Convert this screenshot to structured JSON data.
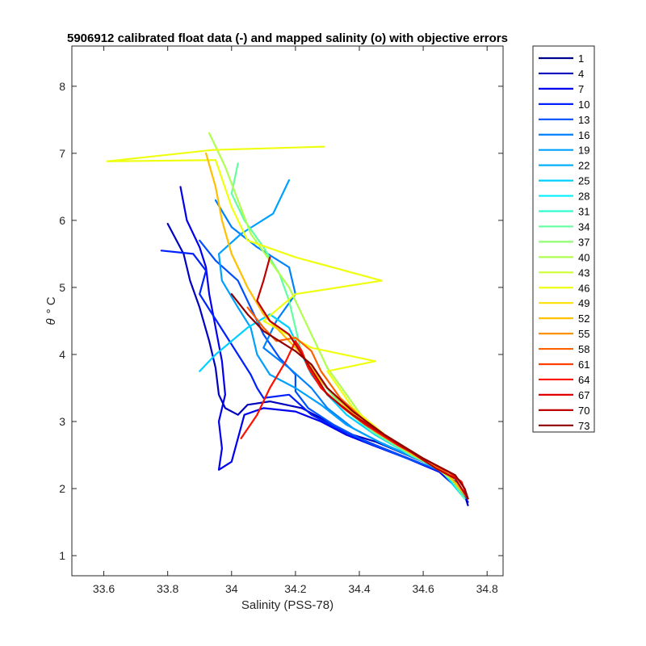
{
  "chart_data": {
    "type": "line",
    "title": "5906912 calibrated float data (-) and mapped salinity (o) with objective errors",
    "xlabel": "Salinity (PSS-78)",
    "ylabel_symbol": "θ",
    "ylabel_unit": "° C",
    "xlim": [
      33.5,
      34.85
    ],
    "ylim": [
      0.7,
      8.6
    ],
    "xticks": [
      33.6,
      33.8,
      34,
      34.2,
      34.4,
      34.6,
      34.8
    ],
    "xtick_labels": [
      "33.6",
      "33.8",
      "34",
      "34.2",
      "34.4",
      "34.6",
      "34.8"
    ],
    "yticks": [
      1,
      2,
      3,
      4,
      5,
      6,
      7,
      8
    ],
    "ytick_labels": [
      "1",
      "2",
      "3",
      "4",
      "5",
      "6",
      "7",
      "8"
    ],
    "grid": false,
    "legend_position": "outside-top-right",
    "legend": [
      "1",
      "4",
      "7",
      "10",
      "13",
      "16",
      "19",
      "22",
      "25",
      "28",
      "31",
      "34",
      "37",
      "40",
      "43",
      "46",
      "49",
      "52",
      "55",
      "58",
      "61",
      "64",
      "67",
      "70",
      "73"
    ],
    "legend_colors": [
      "#00008F",
      "#0000BF",
      "#0000EF",
      "#0020FF",
      "#0050FF",
      "#0080FF",
      "#00A0FF",
      "#00B0FF",
      "#00D0FF",
      "#00F0FF",
      "#30FFCF",
      "#60FF9F",
      "#8FFF70",
      "#AFFF50",
      "#CFFF30",
      "#EFFF10",
      "#FFE000",
      "#FFC000",
      "#FF9000",
      "#FF6000",
      "#FF4000",
      "#FF1000",
      "#E00000",
      "#BF0000",
      "#8F0000"
    ],
    "series": [
      {
        "color": "#0000BF",
        "values": [
          [
            33.8,
            5.95
          ],
          [
            33.85,
            5.5
          ],
          [
            33.87,
            5.1
          ],
          [
            33.9,
            4.7
          ],
          [
            33.93,
            4.2
          ],
          [
            33.95,
            3.8
          ],
          [
            33.96,
            3.4
          ],
          [
            33.98,
            3.2
          ],
          [
            34.02,
            3.1
          ],
          [
            34.05,
            3.25
          ],
          [
            34.12,
            3.3
          ],
          [
            34.22,
            3.2
          ],
          [
            34.3,
            3.0
          ],
          [
            34.38,
            2.8
          ],
          [
            34.45,
            2.7
          ],
          [
            34.55,
            2.5
          ],
          [
            34.65,
            2.3
          ],
          [
            34.7,
            2.1
          ],
          [
            34.73,
            1.9
          ],
          [
            34.74,
            1.75
          ]
        ]
      },
      {
        "color": "#0000EF",
        "values": [
          [
            33.84,
            6.5
          ],
          [
            33.86,
            6.0
          ],
          [
            33.9,
            5.6
          ],
          [
            33.92,
            5.3
          ],
          [
            33.93,
            4.9
          ],
          [
            33.95,
            4.4
          ],
          [
            33.97,
            3.9
          ],
          [
            33.98,
            3.4
          ],
          [
            33.96,
            3.0
          ],
          [
            33.97,
            2.6
          ],
          [
            33.96,
            2.28
          ],
          [
            34.0,
            2.4
          ],
          [
            34.04,
            3.1
          ],
          [
            34.1,
            3.2
          ],
          [
            34.2,
            3.15
          ],
          [
            34.28,
            3.0
          ],
          [
            34.36,
            2.8
          ],
          [
            34.44,
            2.65
          ],
          [
            34.55,
            2.45
          ],
          [
            34.65,
            2.25
          ],
          [
            34.72,
            1.95
          ],
          [
            34.74,
            1.8
          ]
        ]
      },
      {
        "color": "#0020FF",
        "values": [
          [
            33.78,
            5.55
          ],
          [
            33.88,
            5.5
          ],
          [
            33.92,
            5.25
          ],
          [
            33.9,
            4.9
          ],
          [
            33.94,
            4.6
          ],
          [
            33.98,
            4.3
          ],
          [
            34.02,
            4.0
          ],
          [
            34.06,
            3.7
          ],
          [
            34.08,
            3.5
          ],
          [
            34.1,
            3.35
          ],
          [
            34.18,
            3.4
          ],
          [
            34.25,
            3.1
          ],
          [
            34.35,
            2.85
          ],
          [
            34.45,
            2.65
          ],
          [
            34.58,
            2.4
          ],
          [
            34.68,
            2.2
          ],
          [
            34.73,
            1.85
          ]
        ]
      },
      {
        "color": "#0050FF",
        "values": [
          [
            33.9,
            5.7
          ],
          [
            33.95,
            5.4
          ],
          [
            34.02,
            5.1
          ],
          [
            34.06,
            4.7
          ],
          [
            34.1,
            4.3
          ],
          [
            34.15,
            3.95
          ],
          [
            34.2,
            3.7
          ],
          [
            34.2,
            3.45
          ],
          [
            34.24,
            3.2
          ],
          [
            34.32,
            2.95
          ],
          [
            34.42,
            2.7
          ],
          [
            34.55,
            2.45
          ],
          [
            34.66,
            2.25
          ],
          [
            34.73,
            1.9
          ]
        ]
      },
      {
        "color": "#0080FF",
        "values": [
          [
            33.95,
            6.3
          ],
          [
            34.0,
            5.9
          ],
          [
            34.08,
            5.6
          ],
          [
            34.18,
            5.3
          ],
          [
            34.2,
            4.9
          ],
          [
            34.14,
            4.5
          ],
          [
            34.1,
            4.1
          ],
          [
            34.18,
            3.8
          ],
          [
            34.25,
            3.5
          ],
          [
            34.3,
            3.2
          ],
          [
            34.38,
            2.9
          ],
          [
            34.48,
            2.65
          ],
          [
            34.6,
            2.4
          ],
          [
            34.7,
            2.15
          ],
          [
            34.73,
            1.85
          ]
        ]
      },
      {
        "color": "#00A0FF",
        "values": [
          [
            34.18,
            6.6
          ],
          [
            34.13,
            6.1
          ],
          [
            34.03,
            5.8
          ],
          [
            33.96,
            5.5
          ],
          [
            33.97,
            5.1
          ],
          [
            34.02,
            4.7
          ],
          [
            34.06,
            4.4
          ],
          [
            34.08,
            4.0
          ],
          [
            34.12,
            3.7
          ],
          [
            34.2,
            3.5
          ],
          [
            34.28,
            3.25
          ],
          [
            34.36,
            2.95
          ],
          [
            34.46,
            2.7
          ],
          [
            34.58,
            2.45
          ],
          [
            34.68,
            2.2
          ],
          [
            34.73,
            1.85
          ]
        ]
      },
      {
        "color": "#00D0FF",
        "values": [
          [
            33.9,
            3.75
          ],
          [
            33.95,
            4.0
          ],
          [
            34.0,
            4.2
          ],
          [
            34.05,
            4.4
          ],
          [
            34.12,
            4.6
          ],
          [
            34.18,
            4.4
          ],
          [
            34.22,
            4.0
          ],
          [
            34.25,
            3.7
          ],
          [
            34.3,
            3.4
          ],
          [
            34.36,
            3.1
          ],
          [
            34.45,
            2.8
          ],
          [
            34.56,
            2.5
          ],
          [
            34.66,
            2.25
          ],
          [
            34.73,
            1.85
          ]
        ]
      },
      {
        "color": "#60FF9F",
        "values": [
          [
            34.02,
            6.85
          ],
          [
            34.0,
            6.4
          ],
          [
            34.04,
            6.0
          ],
          [
            34.1,
            5.6
          ],
          [
            34.15,
            5.2
          ],
          [
            34.18,
            4.8
          ],
          [
            34.2,
            4.4
          ],
          [
            34.22,
            4.0
          ],
          [
            34.28,
            3.6
          ],
          [
            34.35,
            3.2
          ],
          [
            34.44,
            2.85
          ],
          [
            34.56,
            2.5
          ],
          [
            34.67,
            2.25
          ],
          [
            34.73,
            1.85
          ]
        ]
      },
      {
        "color": "#AFFF50",
        "values": [
          [
            33.93,
            7.3
          ],
          [
            33.98,
            6.8
          ],
          [
            34.02,
            6.3
          ],
          [
            34.06,
            5.8
          ],
          [
            34.12,
            5.4
          ],
          [
            34.18,
            5.0
          ],
          [
            34.22,
            4.6
          ],
          [
            34.26,
            4.2
          ],
          [
            34.3,
            3.8
          ],
          [
            34.36,
            3.4
          ],
          [
            34.42,
            3.0
          ],
          [
            34.52,
            2.65
          ],
          [
            34.63,
            2.35
          ],
          [
            34.71,
            2.05
          ],
          [
            34.74,
            1.85
          ]
        ]
      },
      {
        "color": "#EFFF10",
        "values": [
          [
            34.29,
            7.1
          ],
          [
            33.94,
            7.05
          ],
          [
            33.61,
            6.88
          ],
          [
            33.95,
            6.9
          ],
          [
            34.0,
            6.2
          ],
          [
            34.05,
            5.7
          ],
          [
            34.2,
            5.45
          ],
          [
            34.47,
            5.1
          ],
          [
            34.2,
            4.9
          ],
          [
            34.1,
            4.5
          ],
          [
            34.25,
            4.1
          ],
          [
            34.45,
            3.9
          ],
          [
            34.3,
            3.75
          ],
          [
            34.38,
            3.2
          ],
          [
            34.48,
            2.8
          ],
          [
            34.6,
            2.45
          ],
          [
            34.7,
            2.15
          ],
          [
            34.74,
            1.85
          ]
        ]
      },
      {
        "color": "#FFC000",
        "values": [
          [
            33.92,
            7.0
          ],
          [
            33.95,
            6.5
          ],
          [
            33.97,
            6.0
          ],
          [
            34.0,
            5.5
          ],
          [
            34.05,
            5.0
          ],
          [
            34.1,
            4.6
          ],
          [
            34.16,
            4.3
          ],
          [
            34.22,
            4.0
          ],
          [
            34.28,
            3.6
          ],
          [
            34.36,
            3.2
          ],
          [
            34.45,
            2.85
          ],
          [
            34.57,
            2.5
          ],
          [
            34.68,
            2.2
          ],
          [
            34.74,
            1.85
          ]
        ]
      },
      {
        "color": "#FF6000",
        "values": [
          [
            34.05,
            4.7
          ],
          [
            34.1,
            4.4
          ],
          [
            34.14,
            4.2
          ],
          [
            34.2,
            4.25
          ],
          [
            34.25,
            4.05
          ],
          [
            34.28,
            3.75
          ],
          [
            34.34,
            3.35
          ],
          [
            34.42,
            3.0
          ],
          [
            34.52,
            2.65
          ],
          [
            34.62,
            2.4
          ],
          [
            34.7,
            2.15
          ],
          [
            34.74,
            1.85
          ]
        ]
      },
      {
        "color": "#FF1000",
        "values": [
          [
            34.03,
            2.75
          ],
          [
            34.08,
            3.1
          ],
          [
            34.12,
            3.5
          ],
          [
            34.17,
            3.9
          ],
          [
            34.2,
            4.2
          ],
          [
            34.22,
            4.05
          ],
          [
            34.24,
            3.8
          ],
          [
            34.28,
            3.5
          ],
          [
            34.35,
            3.2
          ],
          [
            34.42,
            2.95
          ],
          [
            34.52,
            2.65
          ],
          [
            34.62,
            2.4
          ],
          [
            34.68,
            2.25
          ],
          [
            34.72,
            2.1
          ],
          [
            34.74,
            1.85
          ]
        ]
      },
      {
        "color": "#BF0000",
        "values": [
          [
            34.12,
            5.45
          ],
          [
            34.1,
            5.1
          ],
          [
            34.08,
            4.8
          ],
          [
            34.12,
            4.5
          ],
          [
            34.18,
            4.3
          ],
          [
            34.22,
            4.0
          ],
          [
            34.26,
            3.7
          ],
          [
            34.3,
            3.4
          ],
          [
            34.38,
            3.1
          ],
          [
            34.46,
            2.85
          ],
          [
            34.56,
            2.55
          ],
          [
            34.64,
            2.3
          ],
          [
            34.7,
            2.15
          ],
          [
            34.74,
            1.85
          ]
        ]
      },
      {
        "color": "#8F0000",
        "values": [
          [
            34.0,
            4.9
          ],
          [
            34.05,
            4.6
          ],
          [
            34.1,
            4.35
          ],
          [
            34.15,
            4.2
          ],
          [
            34.2,
            4.05
          ],
          [
            34.25,
            3.85
          ],
          [
            34.3,
            3.5
          ],
          [
            34.38,
            3.15
          ],
          [
            34.48,
            2.8
          ],
          [
            34.6,
            2.45
          ],
          [
            34.66,
            2.3
          ],
          [
            34.7,
            2.2
          ],
          [
            34.73,
            2.0
          ],
          [
            34.74,
            1.85
          ]
        ]
      }
    ]
  }
}
